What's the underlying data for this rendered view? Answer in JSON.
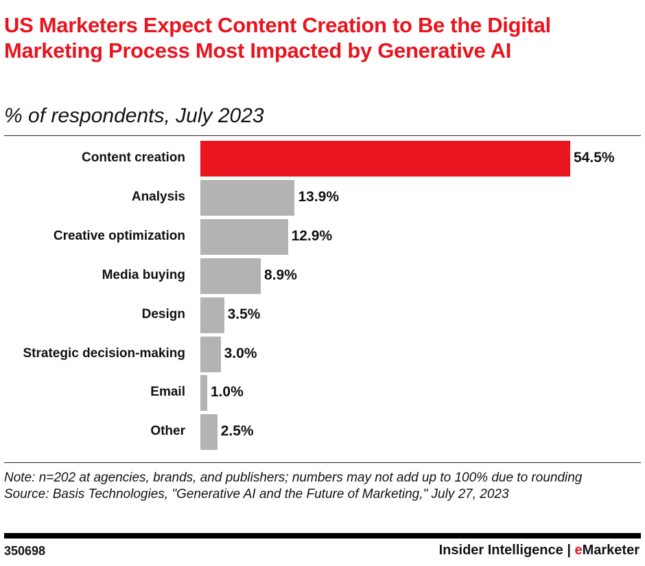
{
  "chart_data": {
    "type": "bar",
    "orientation": "horizontal",
    "title": "US Marketers Expect Content Creation to Be the Digital Marketing Process Most Impacted by Generative AI",
    "subtitle": "% of respondents, July 2023",
    "categories": [
      "Content creation",
      "Analysis",
      "Creative optimization",
      "Media buying",
      "Design",
      "Strategic decision-making",
      "Email",
      "Other"
    ],
    "values": [
      54.5,
      13.9,
      12.9,
      8.9,
      3.5,
      3.0,
      1.0,
      2.5
    ],
    "labels": [
      "54.5%",
      "13.9%",
      "12.9%",
      "8.9%",
      "3.5%",
      "3.0%",
      "1.0%",
      "2.5%"
    ],
    "colors": [
      "#e8141e",
      "#b3b3b3",
      "#b3b3b3",
      "#b3b3b3",
      "#b3b3b3",
      "#b3b3b3",
      "#b3b3b3",
      "#b3b3b3"
    ],
    "grid": false,
    "legend": "none"
  },
  "note": "Note: n=202 at agencies, brands, and publishers; numbers may not add up to 100% due to rounding",
  "source": "Source: Basis Technologies, \"Generative AI and the Future of Marketing,\" July 27, 2023",
  "footer": {
    "id": "350698",
    "brand_a": "Insider Intelligence | ",
    "brand_b_accent": "e",
    "brand_b_rest": "Marketer"
  }
}
